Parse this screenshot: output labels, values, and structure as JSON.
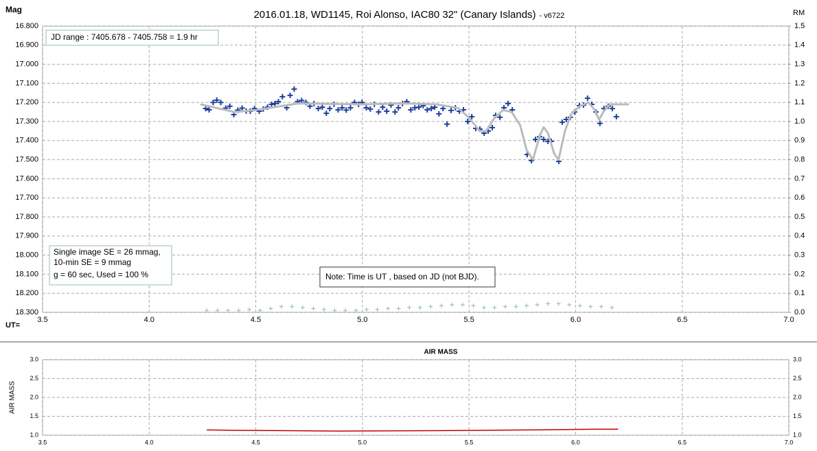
{
  "chart_data": [
    {
      "type": "scatter",
      "title": "2016.01.18,  WD1145, Roi Alonso,  IAC80 32\" (Canary Islands)",
      "subtitle": "- v6722",
      "y_label": "Mag",
      "y2_label": "RM",
      "x_label": "UT=",
      "annotations": [
        "JD range  : 7405.678 - 7405.758  = 1.9 hr",
        "Single image SE = 26 mmag,",
        "10-min SE = 9 mmag",
        "g = 60 sec, Used = 100 %",
        "Note: Time is UT , based on JD (not BJD)."
      ],
      "xlim": [
        3.5,
        7.0
      ],
      "xticks": [
        3.5,
        {
          "value": 4,
          "label": "4.0"
        },
        4.5,
        {
          "value": 5,
          "label": "5.0"
        },
        5.5,
        {
          "value": 6,
          "label": "6.0"
        },
        6.5,
        {
          "value": 7,
          "label": "7.0"
        }
      ],
      "ylim": [
        18.3,
        16.8
      ],
      "yticks": [
        {
          "value": 16.8,
          "label": "16.800"
        },
        {
          "value": 16.9,
          "label": "16.900"
        },
        {
          "value": 17.0,
          "label": "17.000"
        },
        {
          "value": 17.1,
          "label": "17.100"
        },
        {
          "value": 17.2,
          "label": "17.200"
        },
        {
          "value": 17.3,
          "label": "17.300"
        },
        {
          "value": 17.4,
          "label": "17.400"
        },
        {
          "value": 17.5,
          "label": "17.500"
        },
        {
          "value": 17.6,
          "label": "17.600"
        },
        {
          "value": 17.7,
          "label": "17.700"
        },
        {
          "value": 17.8,
          "label": "17.800"
        },
        {
          "value": 17.9,
          "label": "17.900"
        },
        {
          "value": 18.0,
          "label": "18.000"
        },
        {
          "value": 18.1,
          "label": "18.100"
        },
        {
          "value": 18.2,
          "label": "18.200"
        },
        {
          "value": 18.3,
          "label": "18.300"
        }
      ],
      "y2lim": [
        0,
        1.5
      ],
      "y2ticks": [
        {
          "value": 0,
          "label": "0.0"
        },
        0.1,
        0.2,
        0.3,
        0.4,
        0.5,
        0.6,
        0.7,
        0.8,
        0.9,
        {
          "value": 1,
          "label": "1.0"
        },
        1.1,
        1.2,
        1.3,
        1.4,
        1.5
      ],
      "grid": true,
      "series": [
        {
          "type": "scatter",
          "color": "#1f3f9f",
          "x": [
            4.265,
            4.281,
            4.3,
            4.317,
            4.336,
            4.359,
            4.378,
            4.397,
            4.416,
            4.436,
            4.455,
            4.474,
            4.494,
            4.516,
            4.535,
            4.555,
            4.574,
            4.59,
            4.606,
            4.625,
            4.645,
            4.661,
            4.68,
            4.696,
            4.715,
            4.735,
            4.754,
            4.773,
            4.793,
            4.812,
            4.831,
            4.847,
            4.867,
            4.886,
            4.905,
            4.924,
            4.944,
            4.963,
            4.982,
            4.998,
            5.018,
            5.037,
            5.056,
            5.076,
            5.095,
            5.114,
            5.134,
            5.153,
            5.169,
            5.188,
            5.208,
            5.227,
            5.246,
            5.265,
            5.285,
            5.304,
            5.323,
            5.339,
            5.359,
            5.378,
            5.397,
            5.416,
            5.436,
            5.455,
            5.474,
            5.494,
            5.513,
            5.532,
            5.551,
            5.571,
            5.59,
            5.609,
            5.625,
            5.645,
            5.664,
            5.683,
            5.703,
            5.773,
            5.793,
            5.812,
            5.831,
            5.85,
            5.87,
            5.886,
            5.921,
            5.937,
            5.956,
            5.975,
            5.995,
            6.018,
            6.037,
            6.056,
            6.076,
            6.095,
            6.114,
            6.133,
            6.153,
            6.172,
            6.191
          ],
          "values": [
            17.232,
            17.239,
            17.2,
            17.188,
            17.2,
            17.23,
            17.22,
            17.264,
            17.24,
            17.23,
            17.245,
            17.246,
            17.232,
            17.246,
            17.235,
            17.225,
            17.21,
            17.206,
            17.196,
            17.17,
            17.228,
            17.163,
            17.13,
            17.196,
            17.19,
            17.2,
            17.22,
            17.206,
            17.232,
            17.225,
            17.257,
            17.232,
            17.21,
            17.239,
            17.228,
            17.24,
            17.228,
            17.2,
            17.21,
            17.2,
            17.228,
            17.235,
            17.21,
            17.25,
            17.225,
            17.246,
            17.214,
            17.25,
            17.228,
            17.206,
            17.196,
            17.239,
            17.228,
            17.225,
            17.217,
            17.239,
            17.232,
            17.225,
            17.26,
            17.232,
            17.314,
            17.242,
            17.228,
            17.246,
            17.239,
            17.3,
            17.275,
            17.336,
            17.34,
            17.361,
            17.35,
            17.332,
            17.268,
            17.278,
            17.228,
            17.206,
            17.239,
            17.473,
            17.505,
            17.394,
            17.38,
            17.394,
            17.404,
            17.404,
            17.509,
            17.304,
            17.289,
            17.278,
            17.25,
            17.217,
            17.214,
            17.178,
            17.21,
            17.25,
            17.31,
            17.232,
            17.22,
            17.232,
            17.275
          ]
        },
        {
          "type": "line",
          "color": "#bbbbbb",
          "x": [
            4.24,
            4.4,
            4.5,
            4.7,
            5.0,
            5.2,
            5.35,
            5.45,
            5.5,
            5.55,
            5.58,
            5.62,
            5.66,
            5.7,
            5.74,
            5.77,
            5.8,
            5.83,
            5.85,
            5.87,
            5.9,
            5.92,
            5.95,
            5.98,
            6.02,
            6.06,
            6.09,
            6.11,
            6.13,
            6.16,
            6.25
          ],
          "values": [
            17.21,
            17.25,
            17.24,
            17.205,
            17.21,
            17.205,
            17.21,
            17.23,
            17.28,
            17.35,
            17.35,
            17.28,
            17.24,
            17.25,
            17.32,
            17.45,
            17.5,
            17.38,
            17.33,
            17.36,
            17.47,
            17.5,
            17.35,
            17.26,
            17.22,
            17.2,
            17.24,
            17.29,
            17.25,
            17.21,
            17.21
          ]
        },
        {
          "type": "scatter",
          "axis": "y2",
          "color": "#8fb5c8",
          "x": [
            4.27,
            4.32,
            4.37,
            4.42,
            4.47,
            4.52,
            4.57,
            4.62,
            4.67,
            4.72,
            4.77,
            4.82,
            4.87,
            4.92,
            4.97,
            5.02,
            5.07,
            5.12,
            5.17,
            5.22,
            5.27,
            5.32,
            5.37,
            5.42,
            5.47,
            5.52,
            5.57,
            5.62,
            5.67,
            5.72,
            5.77,
            5.82,
            5.87,
            5.92,
            5.97,
            6.02,
            6.07,
            6.12,
            6.17
          ],
          "values": [
            0.01,
            0.01,
            0.01,
            0.01,
            0.015,
            0.01,
            0.02,
            0.03,
            0.03,
            0.025,
            0.02,
            0.015,
            0.01,
            0.01,
            0.01,
            0.015,
            0.015,
            0.02,
            0.02,
            0.025,
            0.025,
            0.03,
            0.035,
            0.04,
            0.04,
            0.035,
            0.025,
            0.025,
            0.03,
            0.03,
            0.035,
            0.04,
            0.045,
            0.045,
            0.04,
            0.035,
            0.03,
            0.03,
            0.025
          ]
        }
      ]
    },
    {
      "type": "line",
      "title": "AIR MASS",
      "y_label": "AIR MASS",
      "xlim": [
        3.5,
        7.0
      ],
      "xticks": [
        3.5,
        {
          "value": 4,
          "label": "4.0"
        },
        4.5,
        {
          "value": 5,
          "label": "5.0"
        },
        5.5,
        {
          "value": 6,
          "label": "6.0"
        },
        6.5,
        {
          "value": 7,
          "label": "7.0"
        }
      ],
      "ylim": [
        1,
        3
      ],
      "yticks": [
        {
          "value": 1,
          "label": "1.0"
        },
        1.5,
        {
          "value": 2,
          "label": "2.0"
        },
        2.5,
        {
          "value": 3,
          "label": "3.0"
        }
      ],
      "grid": true,
      "series": [
        {
          "type": "line",
          "color": "#c00000",
          "x": [
            4.27,
            4.4,
            4.9,
            5.35,
            5.8,
            6.1,
            6.2
          ],
          "values": [
            1.14,
            1.13,
            1.11,
            1.12,
            1.14,
            1.16,
            1.16
          ]
        }
      ]
    }
  ]
}
